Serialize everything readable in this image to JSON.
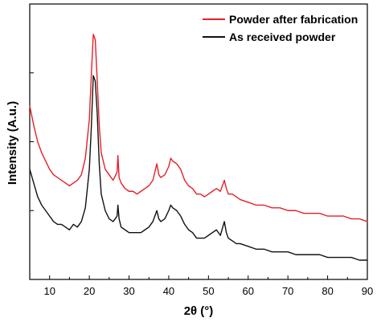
{
  "chart_data": {
    "type": "line",
    "title": "",
    "xlabel": "2θ (°)",
    "ylabel": "Intensity (A.u.)",
    "xlim": [
      5,
      90
    ],
    "ylim": [
      0,
      100
    ],
    "x_ticks": [
      10,
      20,
      30,
      40,
      50,
      60,
      70,
      80,
      90
    ],
    "y_ticks_labeled": false,
    "grid": false,
    "legend_position": "top-right",
    "colors": {
      "red": "#e5202a",
      "black": "#111111"
    },
    "series": [
      {
        "name": "Powder after fabrication",
        "color": "#e5202a",
        "points": [
          [
            5,
            63
          ],
          [
            6,
            56
          ],
          [
            7,
            50
          ],
          [
            8,
            46
          ],
          [
            9,
            43
          ],
          [
            10,
            40
          ],
          [
            11,
            38
          ],
          [
            12,
            37
          ],
          [
            13,
            36
          ],
          [
            14,
            35
          ],
          [
            15,
            34
          ],
          [
            16,
            35
          ],
          [
            17,
            36
          ],
          [
            18,
            38
          ],
          [
            19,
            44
          ],
          [
            20,
            58
          ],
          [
            20.5,
            74
          ],
          [
            21,
            89
          ],
          [
            21.5,
            87
          ],
          [
            22,
            72
          ],
          [
            22.5,
            56
          ],
          [
            23,
            46
          ],
          [
            24,
            40
          ],
          [
            25,
            38
          ],
          [
            26,
            36
          ],
          [
            27,
            39
          ],
          [
            27.2,
            45
          ],
          [
            27.5,
            37
          ],
          [
            28,
            35
          ],
          [
            29,
            33
          ],
          [
            30,
            32
          ],
          [
            31,
            32
          ],
          [
            32,
            31
          ],
          [
            33,
            32
          ],
          [
            34,
            33
          ],
          [
            35,
            34
          ],
          [
            36,
            36
          ],
          [
            36.5,
            39
          ],
          [
            37,
            42
          ],
          [
            37.5,
            38
          ],
          [
            38,
            37
          ],
          [
            39,
            38
          ],
          [
            40,
            41
          ],
          [
            40.5,
            44
          ],
          [
            41,
            43
          ],
          [
            42,
            42
          ],
          [
            43,
            40
          ],
          [
            44,
            36
          ],
          [
            45,
            34
          ],
          [
            46,
            33
          ],
          [
            47,
            31
          ],
          [
            48,
            31
          ],
          [
            49,
            30
          ],
          [
            50,
            31
          ],
          [
            51,
            32
          ],
          [
            52,
            33
          ],
          [
            53,
            32
          ],
          [
            54,
            36
          ],
          [
            54.5,
            33
          ],
          [
            55,
            31
          ],
          [
            56,
            31
          ],
          [
            57,
            30
          ],
          [
            58,
            29
          ],
          [
            60,
            28
          ],
          [
            62,
            27
          ],
          [
            64,
            27
          ],
          [
            66,
            26
          ],
          [
            68,
            26
          ],
          [
            70,
            25
          ],
          [
            72,
            25
          ],
          [
            74,
            24
          ],
          [
            76,
            24
          ],
          [
            78,
            24
          ],
          [
            80,
            23
          ],
          [
            82,
            23
          ],
          [
            84,
            23
          ],
          [
            86,
            22
          ],
          [
            88,
            22
          ],
          [
            90,
            21
          ]
        ]
      },
      {
        "name": "As received powder",
        "color": "#111111",
        "points": [
          [
            5,
            40
          ],
          [
            6,
            35
          ],
          [
            7,
            30
          ],
          [
            8,
            27
          ],
          [
            9,
            25
          ],
          [
            10,
            23
          ],
          [
            11,
            21
          ],
          [
            12,
            20
          ],
          [
            13,
            20
          ],
          [
            14,
            19
          ],
          [
            15,
            18
          ],
          [
            16,
            20
          ],
          [
            17,
            19
          ],
          [
            18,
            21
          ],
          [
            19,
            26
          ],
          [
            20,
            40
          ],
          [
            20.5,
            55
          ],
          [
            21,
            74
          ],
          [
            21.5,
            72
          ],
          [
            22,
            60
          ],
          [
            22.5,
            42
          ],
          [
            23,
            31
          ],
          [
            24,
            25
          ],
          [
            25,
            22
          ],
          [
            26,
            21
          ],
          [
            27,
            23
          ],
          [
            27.2,
            27
          ],
          [
            27.5,
            22
          ],
          [
            28,
            19
          ],
          [
            29,
            18
          ],
          [
            30,
            17
          ],
          [
            31,
            17
          ],
          [
            32,
            17
          ],
          [
            33,
            17
          ],
          [
            34,
            18
          ],
          [
            35,
            19
          ],
          [
            36,
            21
          ],
          [
            36.5,
            23
          ],
          [
            37,
            25
          ],
          [
            37.5,
            22
          ],
          [
            38,
            21
          ],
          [
            39,
            22
          ],
          [
            40,
            25
          ],
          [
            40.5,
            27
          ],
          [
            41,
            26
          ],
          [
            42,
            25
          ],
          [
            43,
            23
          ],
          [
            44,
            20
          ],
          [
            45,
            18
          ],
          [
            46,
            17
          ],
          [
            47,
            15
          ],
          [
            48,
            15
          ],
          [
            49,
            15
          ],
          [
            50,
            16
          ],
          [
            51,
            17
          ],
          [
            52,
            18
          ],
          [
            53,
            16
          ],
          [
            54,
            21
          ],
          [
            54.5,
            17
          ],
          [
            55,
            15
          ],
          [
            56,
            14
          ],
          [
            57,
            13
          ],
          [
            58,
            13
          ],
          [
            60,
            12
          ],
          [
            62,
            11
          ],
          [
            64,
            11
          ],
          [
            66,
            10
          ],
          [
            68,
            10
          ],
          [
            70,
            10
          ],
          [
            72,
            9
          ],
          [
            74,
            9
          ],
          [
            76,
            9
          ],
          [
            78,
            9
          ],
          [
            80,
            8
          ],
          [
            82,
            8
          ],
          [
            84,
            8
          ],
          [
            86,
            8
          ],
          [
            88,
            7
          ],
          [
            90,
            7
          ]
        ]
      }
    ]
  }
}
